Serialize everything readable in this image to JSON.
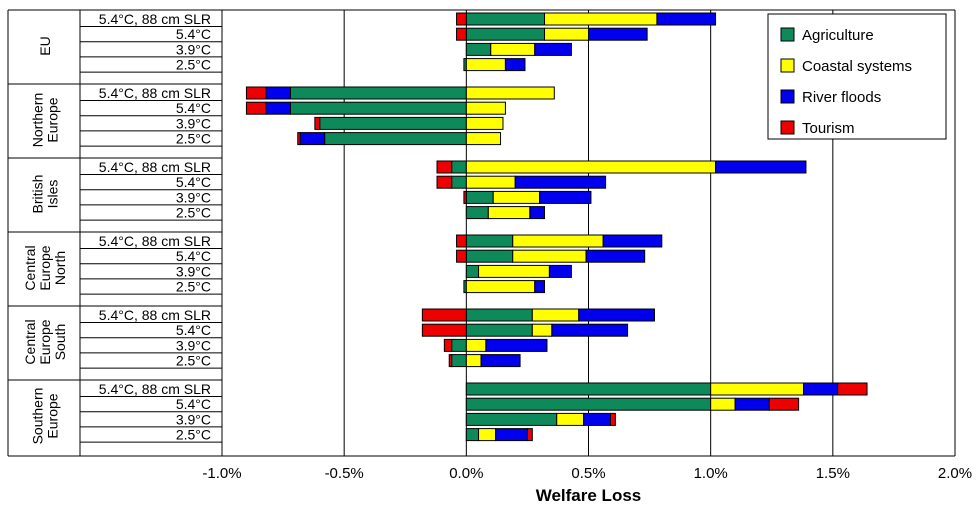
{
  "chart_data": {
    "type": "bar",
    "orientation": "horizontal",
    "stacked": true,
    "title": "",
    "xlabel": "Welfare Loss",
    "ylabel": "",
    "xlim": [
      -1.0,
      2.0
    ],
    "xticks": [
      "-1.0%",
      "-0.5%",
      "0.0%",
      "0.5%",
      "1.0%",
      "1.5%",
      "2.0%"
    ],
    "grid": "vertical",
    "legend_position": "top-right",
    "scenarios": [
      "5.4°C, 88 cm SLR",
      "5.4°C",
      "3.9°C",
      "2.5°C"
    ],
    "groups": [
      {
        "name": "EU",
        "lines": [
          "EU"
        ]
      },
      {
        "name": "Northern Europe",
        "lines": [
          "Northern",
          "Europe"
        ]
      },
      {
        "name": "British Isles",
        "lines": [
          "British",
          "Isles"
        ]
      },
      {
        "name": "Central Europe North",
        "lines": [
          "Central",
          "Europe",
          "North"
        ]
      },
      {
        "name": "Central Europe South",
        "lines": [
          "Central",
          "Europe",
          "South"
        ]
      },
      {
        "name": "Southern Europe",
        "lines": [
          "Southern",
          "Europe"
        ]
      }
    ],
    "series": [
      {
        "name": "Agriculture",
        "color": "#0e8a5a",
        "values": [
          [
            0.32,
            0.32,
            0.1,
            -0.01
          ],
          [
            -0.72,
            -0.72,
            -0.6,
            -0.58
          ],
          [
            -0.06,
            -0.06,
            0.11,
            0.09
          ],
          [
            0.19,
            0.19,
            0.05,
            -0.01
          ],
          [
            0.27,
            0.27,
            -0.06,
            -0.06
          ],
          [
            1.0,
            1.0,
            0.37,
            0.05
          ]
        ]
      },
      {
        "name": "Coastal systems",
        "color": "#ffff00",
        "values": [
          [
            0.46,
            0.18,
            0.18,
            0.16
          ],
          [
            0.36,
            0.16,
            0.15,
            0.14
          ],
          [
            1.02,
            0.2,
            0.19,
            0.17
          ],
          [
            0.37,
            0.3,
            0.29,
            0.28
          ],
          [
            0.19,
            0.08,
            0.08,
            0.06
          ],
          [
            0.38,
            0.1,
            0.11,
            0.07
          ]
        ]
      },
      {
        "name": "River floods",
        "color": "#0000ee",
        "values": [
          [
            0.24,
            0.24,
            0.15,
            0.08
          ],
          [
            -0.1,
            -0.1,
            0.0,
            -0.1
          ],
          [
            0.37,
            0.37,
            0.21,
            0.06
          ],
          [
            0.24,
            0.24,
            0.09,
            0.04
          ],
          [
            0.31,
            0.31,
            0.25,
            0.16
          ],
          [
            0.14,
            0.14,
            0.11,
            0.13
          ]
        ]
      },
      {
        "name": "Tourism",
        "color": "#ee0000",
        "values": [
          [
            -0.04,
            -0.04,
            0.0,
            0.0
          ],
          [
            -0.08,
            -0.08,
            -0.02,
            -0.01
          ],
          [
            -0.06,
            -0.06,
            -0.01,
            0.0
          ],
          [
            -0.04,
            -0.04,
            0.0,
            0.0
          ],
          [
            -0.18,
            -0.18,
            -0.03,
            -0.01
          ],
          [
            0.12,
            0.12,
            0.02,
            0.02
          ]
        ]
      }
    ]
  }
}
